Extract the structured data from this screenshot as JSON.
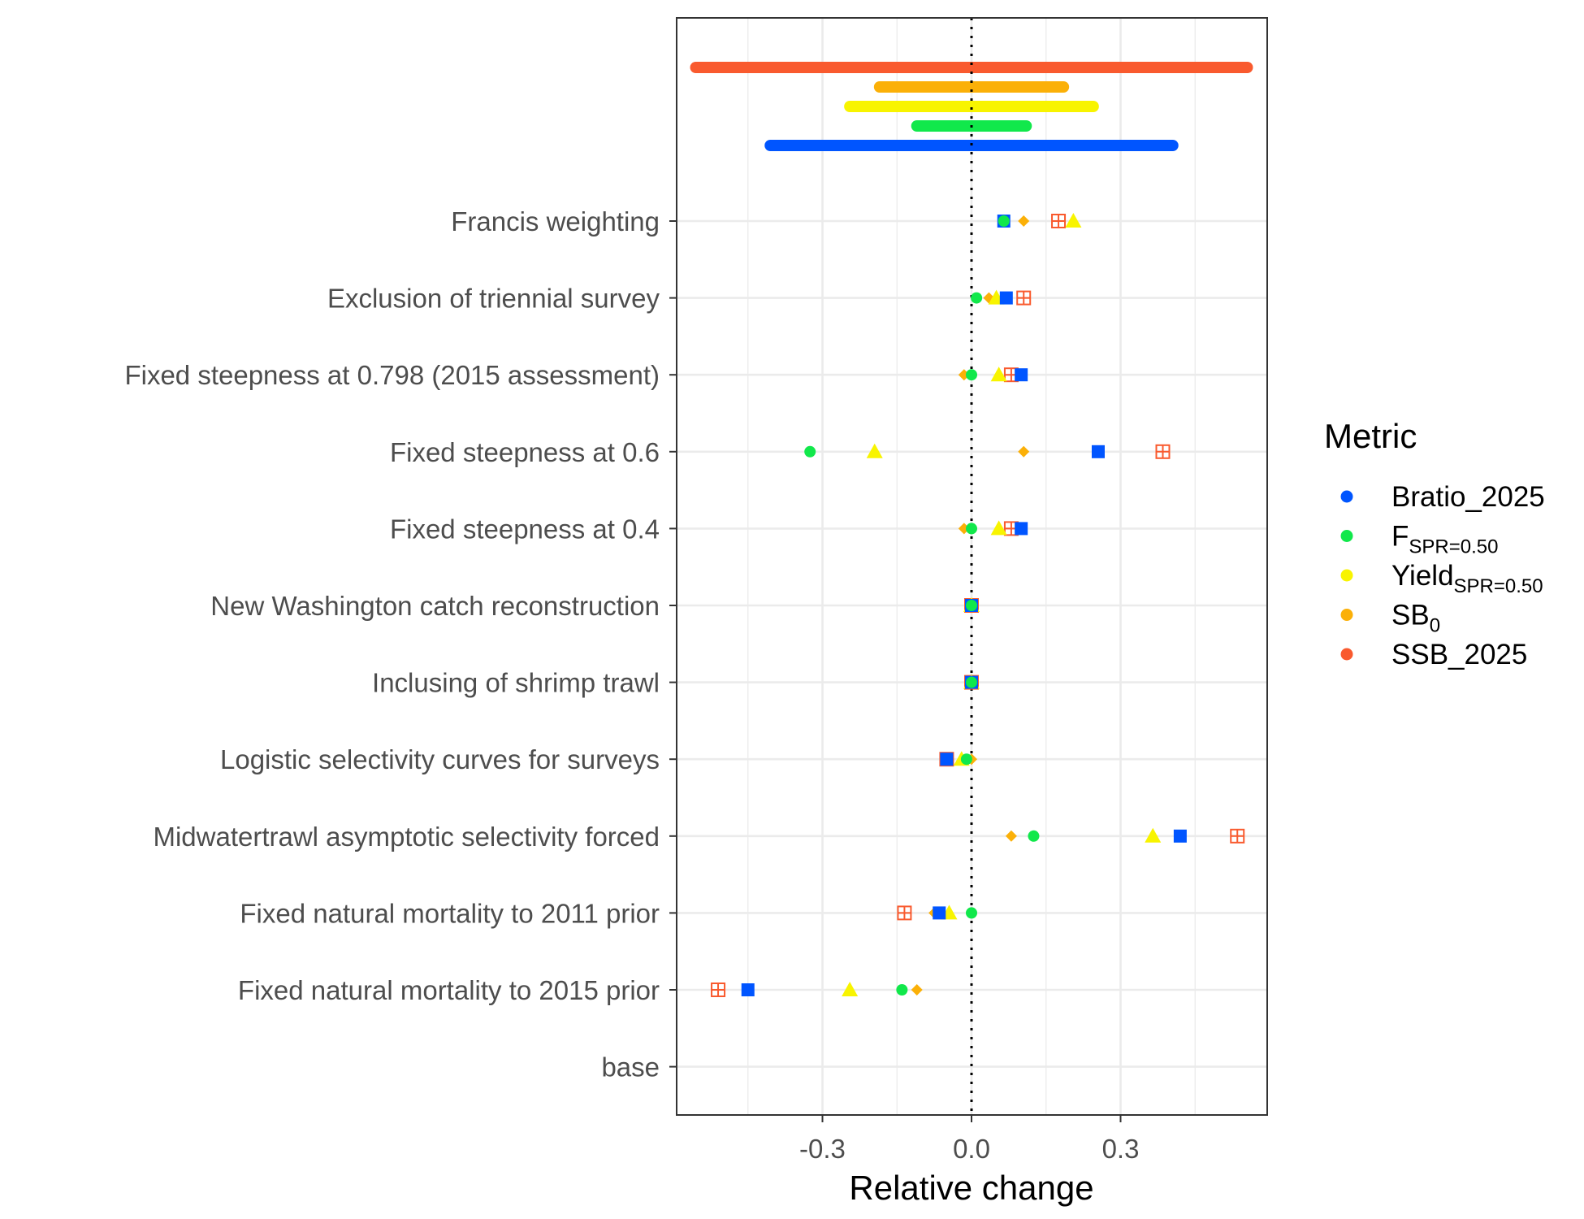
{
  "chart_data": {
    "type": "scatter",
    "xlabel": "Relative change",
    "ylabel": "",
    "xlim": [
      -0.55,
      0.6
    ],
    "x_ticks": [
      "-0.3",
      "0.0",
      "0.3"
    ],
    "x_tick_values": [
      -0.3,
      0.0,
      0.3
    ],
    "grid": true,
    "reference_line_x": 0,
    "legend": {
      "title": "Metric",
      "position": "right",
      "entries": [
        {
          "key": "bratio",
          "base": "Bratio_2025",
          "sub": ""
        },
        {
          "key": "fspr",
          "base": "F",
          "sub": "SPR=0.50"
        },
        {
          "key": "yield",
          "base": "Yield",
          "sub": "SPR=0.50"
        },
        {
          "key": "sb0",
          "base": "SB",
          "sub": "0"
        },
        {
          "key": "ssb",
          "base": "SSB_2025",
          "sub": ""
        }
      ]
    },
    "colors": {
      "bratio": "#0055FF",
      "fspr": "#11E84B",
      "yield": "#F8F400",
      "sb0": "#FBB008",
      "ssb": "#F95A2E"
    },
    "categories": [
      "Francis weighting",
      "Exclusion of triennial survey",
      "Fixed steepness at 0.798 (2015 assessment)",
      "Fixed steepness at 0.6",
      "Fixed steepness at 0.4",
      "New Washington catch reconstruction",
      "Inclusing of shrimp trawl",
      "Logistic selectivity curves for surveys",
      "Midwatertrawl asymptotic selectivity forced",
      "Fixed natural mortality to 2011 prior",
      "Fixed natural mortality to 2015 prior",
      "base"
    ],
    "series": [
      {
        "key": "ssb",
        "name": "SSB_2025",
        "marker": "square-plus",
        "values": [
          0.175,
          0.105,
          0.08,
          0.385,
          0.08,
          0.0,
          0.0,
          -0.05,
          0.535,
          -0.135,
          -0.51,
          null
        ]
      },
      {
        "key": "sb0",
        "name": "SB0",
        "marker": "diamond",
        "values": [
          0.105,
          0.035,
          -0.015,
          0.105,
          -0.015,
          0.0,
          0.0,
          0.0,
          0.08,
          -0.075,
          -0.11,
          null
        ]
      },
      {
        "key": "yield",
        "name": "YieldSPR=0.50",
        "marker": "triangle",
        "values": [
          0.205,
          0.05,
          0.055,
          -0.195,
          0.055,
          0.0,
          0.0,
          -0.02,
          0.365,
          -0.045,
          -0.245,
          null
        ]
      },
      {
        "key": "bratio",
        "name": "Bratio_2025",
        "marker": "square",
        "values": [
          0.065,
          0.07,
          0.1,
          0.255,
          0.1,
          0.0,
          0.0,
          -0.05,
          0.42,
          -0.065,
          -0.45,
          null
        ]
      },
      {
        "key": "fspr",
        "name": "FSPR=0.50",
        "marker": "circle",
        "values": [
          0.065,
          0.01,
          0.0,
          -0.325,
          0.0,
          0.0,
          0.0,
          -0.01,
          0.125,
          0.0,
          -0.14,
          null
        ]
      }
    ],
    "ranges": [
      {
        "key": "ssb",
        "min": -0.555,
        "max": 0.555
      },
      {
        "key": "sb0",
        "min": -0.185,
        "max": 0.185
      },
      {
        "key": "yield",
        "min": -0.245,
        "max": 0.245
      },
      {
        "key": "fspr",
        "min": -0.11,
        "max": 0.11
      },
      {
        "key": "bratio",
        "min": -0.405,
        "max": 0.405
      }
    ]
  }
}
